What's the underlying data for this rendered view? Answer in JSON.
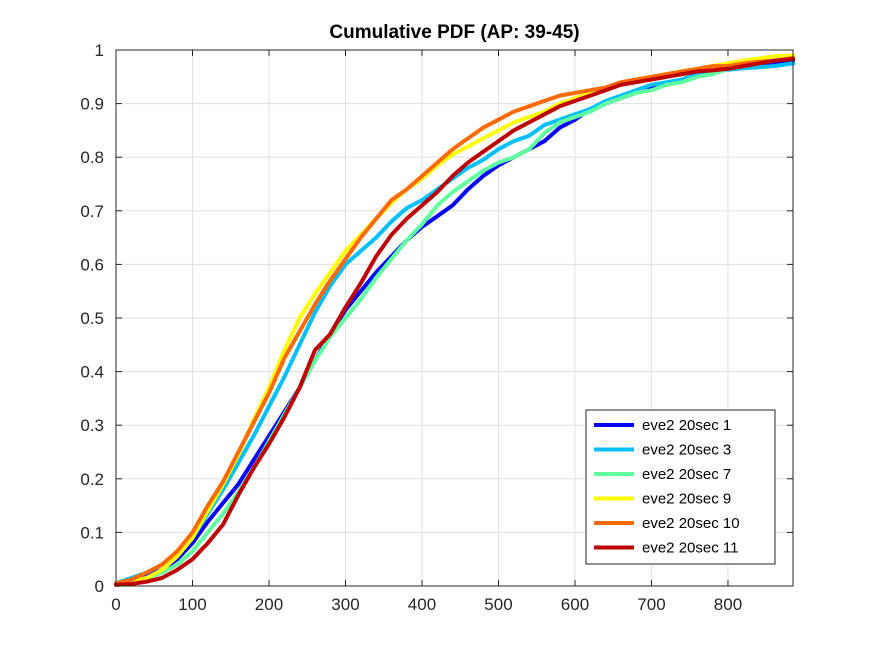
{
  "chart_data": {
    "type": "line",
    "title": "Cumulative PDF (AP: 39-45)",
    "xlabel": "",
    "ylabel": "",
    "xlim": [
      0,
      885
    ],
    "ylim": [
      0,
      1
    ],
    "xticks": [
      0,
      100,
      200,
      300,
      400,
      500,
      600,
      700,
      800
    ],
    "yticks": [
      0,
      0.1,
      0.2,
      0.3,
      0.4,
      0.5,
      0.6,
      0.7,
      0.8,
      0.9,
      1
    ],
    "xtick_labels": [
      "0",
      "100",
      "200",
      "300",
      "400",
      "500",
      "600",
      "700",
      "800"
    ],
    "ytick_labels": [
      "0",
      "0.1",
      "0.2",
      "0.3",
      "0.4",
      "0.5",
      "0.6",
      "0.7",
      "0.8",
      "0.9",
      "1"
    ],
    "grid": true,
    "legend_position": "bottom-right",
    "series": [
      {
        "name": "eve2 20sec 1",
        "color": "#0000ff",
        "x": [
          0,
          20,
          40,
          60,
          80,
          100,
          120,
          140,
          160,
          180,
          200,
          220,
          240,
          260,
          280,
          300,
          320,
          340,
          360,
          380,
          400,
          420,
          440,
          460,
          480,
          500,
          520,
          540,
          560,
          580,
          600,
          620,
          640,
          660,
          680,
          700,
          720,
          740,
          760,
          780,
          800,
          820,
          840,
          860,
          885
        ],
        "y": [
          0.003,
          0.01,
          0.02,
          0.03,
          0.05,
          0.08,
          0.12,
          0.155,
          0.19,
          0.235,
          0.28,
          0.325,
          0.37,
          0.42,
          0.47,
          0.515,
          0.55,
          0.585,
          0.615,
          0.645,
          0.67,
          0.69,
          0.71,
          0.74,
          0.765,
          0.785,
          0.8,
          0.815,
          0.83,
          0.855,
          0.87,
          0.89,
          0.9,
          0.91,
          0.92,
          0.93,
          0.935,
          0.945,
          0.955,
          0.96,
          0.965,
          0.968,
          0.972,
          0.976,
          0.98
        ]
      },
      {
        "name": "eve2 20sec 3",
        "color": "#00bfff",
        "x": [
          0,
          20,
          40,
          60,
          80,
          100,
          120,
          140,
          160,
          180,
          200,
          220,
          240,
          260,
          280,
          300,
          320,
          340,
          360,
          380,
          400,
          420,
          440,
          460,
          480,
          500,
          520,
          540,
          560,
          580,
          600,
          620,
          640,
          660,
          680,
          700,
          720,
          740,
          760,
          780,
          800,
          820,
          840,
          860,
          885
        ],
        "y": [
          0.005,
          0.015,
          0.025,
          0.04,
          0.06,
          0.09,
          0.135,
          0.18,
          0.23,
          0.28,
          0.335,
          0.39,
          0.45,
          0.51,
          0.56,
          0.6,
          0.625,
          0.65,
          0.68,
          0.705,
          0.72,
          0.74,
          0.76,
          0.78,
          0.795,
          0.815,
          0.83,
          0.84,
          0.86,
          0.87,
          0.88,
          0.89,
          0.905,
          0.915,
          0.925,
          0.935,
          0.94,
          0.945,
          0.955,
          0.96,
          0.963,
          0.966,
          0.968,
          0.97,
          0.975
        ]
      },
      {
        "name": "eve2 20sec 7",
        "color": "#60ff9f",
        "x": [
          0,
          20,
          40,
          60,
          80,
          100,
          120,
          140,
          160,
          180,
          200,
          220,
          240,
          260,
          280,
          300,
          320,
          340,
          360,
          380,
          400,
          420,
          440,
          460,
          480,
          500,
          520,
          540,
          560,
          580,
          600,
          620,
          640,
          660,
          680,
          700,
          720,
          740,
          760,
          780,
          800,
          820,
          840,
          860,
          885
        ],
        "y": [
          0.003,
          0.008,
          0.015,
          0.025,
          0.04,
          0.065,
          0.1,
          0.135,
          0.175,
          0.22,
          0.27,
          0.32,
          0.37,
          0.42,
          0.465,
          0.5,
          0.535,
          0.575,
          0.61,
          0.645,
          0.675,
          0.71,
          0.735,
          0.755,
          0.775,
          0.79,
          0.8,
          0.815,
          0.845,
          0.865,
          0.875,
          0.885,
          0.9,
          0.91,
          0.92,
          0.925,
          0.935,
          0.94,
          0.95,
          0.955,
          0.965,
          0.97,
          0.975,
          0.98,
          0.985
        ]
      },
      {
        "name": "eve2 20sec 9",
        "color": "#ffff00",
        "x": [
          0,
          20,
          40,
          60,
          80,
          100,
          120,
          140,
          160,
          180,
          200,
          220,
          240,
          260,
          280,
          300,
          320,
          340,
          360,
          380,
          400,
          420,
          440,
          460,
          480,
          500,
          520,
          540,
          560,
          580,
          600,
          620,
          640,
          660,
          680,
          700,
          720,
          740,
          760,
          780,
          800,
          820,
          840,
          860,
          885
        ],
        "y": [
          0.003,
          0.008,
          0.015,
          0.03,
          0.055,
          0.09,
          0.14,
          0.19,
          0.245,
          0.31,
          0.37,
          0.44,
          0.5,
          0.545,
          0.585,
          0.625,
          0.655,
          0.685,
          0.715,
          0.74,
          0.76,
          0.785,
          0.805,
          0.82,
          0.835,
          0.85,
          0.865,
          0.875,
          0.885,
          0.9,
          0.91,
          0.92,
          0.93,
          0.935,
          0.945,
          0.95,
          0.955,
          0.96,
          0.965,
          0.97,
          0.975,
          0.98,
          0.984,
          0.988,
          0.99
        ]
      },
      {
        "name": "eve2 20sec 10",
        "color": "#ff6a00",
        "x": [
          0,
          20,
          40,
          60,
          80,
          100,
          120,
          140,
          160,
          180,
          200,
          220,
          240,
          260,
          280,
          300,
          320,
          340,
          360,
          380,
          400,
          420,
          440,
          460,
          480,
          500,
          520,
          540,
          560,
          580,
          600,
          620,
          640,
          660,
          680,
          700,
          720,
          740,
          760,
          780,
          800,
          820,
          840,
          860,
          885
        ],
        "y": [
          0.005,
          0.012,
          0.025,
          0.04,
          0.065,
          0.1,
          0.15,
          0.195,
          0.25,
          0.305,
          0.36,
          0.425,
          0.475,
          0.525,
          0.57,
          0.61,
          0.65,
          0.685,
          0.72,
          0.74,
          0.765,
          0.79,
          0.815,
          0.835,
          0.855,
          0.87,
          0.885,
          0.895,
          0.905,
          0.915,
          0.92,
          0.925,
          0.93,
          0.94,
          0.945,
          0.95,
          0.955,
          0.96,
          0.965,
          0.97,
          0.97,
          0.975,
          0.978,
          0.98,
          0.985
        ]
      },
      {
        "name": "eve2 20sec 11",
        "color": "#bf0000",
        "x": [
          0,
          20,
          40,
          60,
          80,
          100,
          120,
          140,
          160,
          180,
          200,
          220,
          240,
          260,
          280,
          300,
          320,
          340,
          360,
          380,
          400,
          420,
          440,
          460,
          480,
          500,
          520,
          540,
          560,
          580,
          600,
          620,
          640,
          660,
          680,
          700,
          720,
          740,
          760,
          780,
          800,
          820,
          840,
          860,
          885
        ],
        "y": [
          0.002,
          0.004,
          0.008,
          0.015,
          0.03,
          0.05,
          0.08,
          0.115,
          0.17,
          0.22,
          0.265,
          0.315,
          0.37,
          0.44,
          0.47,
          0.52,
          0.565,
          0.615,
          0.655,
          0.685,
          0.71,
          0.735,
          0.765,
          0.79,
          0.81,
          0.83,
          0.85,
          0.865,
          0.88,
          0.895,
          0.905,
          0.915,
          0.925,
          0.935,
          0.94,
          0.945,
          0.95,
          0.955,
          0.96,
          0.962,
          0.965,
          0.97,
          0.975,
          0.98,
          0.983
        ]
      }
    ]
  }
}
